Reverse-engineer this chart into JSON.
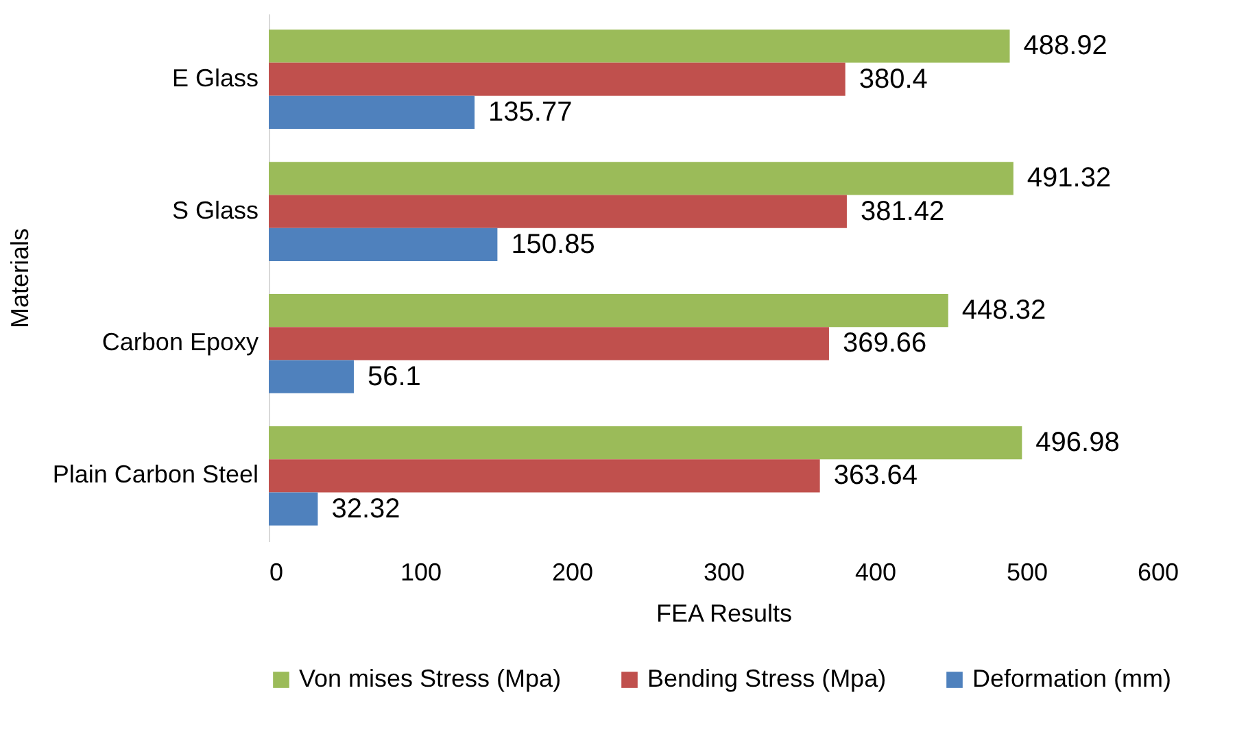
{
  "chart_data": {
    "type": "bar",
    "orientation": "horizontal",
    "xlabel": "FEA Results",
    "ylabel": "Materials",
    "categories": [
      "E Glass",
      "S Glass",
      "Carbon Epoxy",
      "Plain Carbon Steel"
    ],
    "series": [
      {
        "name": "Von mises Stress (Mpa)",
        "color": "#9bbb59",
        "values": [
          488.92,
          491.32,
          448.32,
          496.98
        ]
      },
      {
        "name": "Bending Stress (Mpa)",
        "color": "#c0504d",
        "values": [
          380.4,
          381.42,
          369.66,
          363.64
        ]
      },
      {
        "name": "Deformation (mm)",
        "color": "#4f81bd",
        "values": [
          135.77,
          150.85,
          56.1,
          32.32
        ]
      }
    ],
    "xlim": [
      0,
      600
    ],
    "xticks": [
      0,
      100,
      200,
      300,
      400,
      500,
      600
    ],
    "data_labels": true,
    "grid": false,
    "legend": "bottom"
  }
}
